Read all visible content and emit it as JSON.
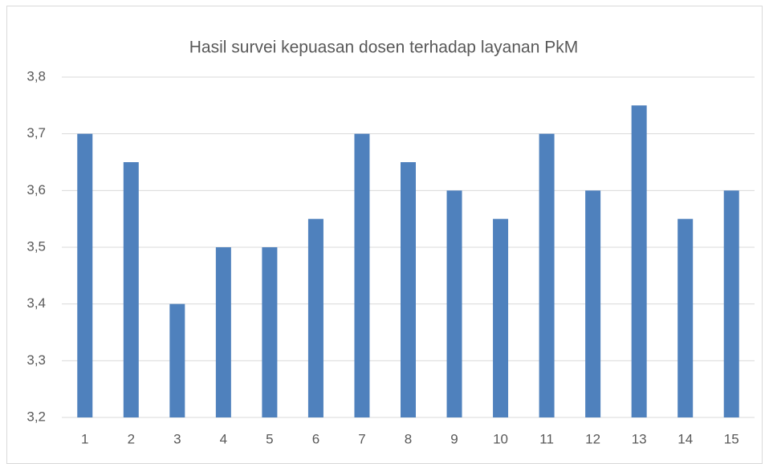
{
  "chart_data": {
    "type": "bar",
    "title": "Hasil survei kepuasan dosen terhadap layanan PkM",
    "categories": [
      "1",
      "2",
      "3",
      "4",
      "5",
      "6",
      "7",
      "8",
      "9",
      "10",
      "11",
      "12",
      "13",
      "14",
      "15"
    ],
    "values": [
      3.7,
      3.65,
      3.4,
      3.5,
      3.5,
      3.55,
      3.7,
      3.65,
      3.6,
      3.55,
      3.7,
      3.6,
      3.75,
      3.55,
      3.6
    ],
    "color": "#4f81bd",
    "ylim": [
      3.2,
      3.8
    ],
    "yticks": [
      {
        "value": 3.2,
        "label": "3,2"
      },
      {
        "value": 3.3,
        "label": "3,3"
      },
      {
        "value": 3.4,
        "label": "3,4"
      },
      {
        "value": 3.5,
        "label": "3,5"
      },
      {
        "value": 3.6,
        "label": "3,6"
      },
      {
        "value": 3.7,
        "label": "3,7"
      },
      {
        "value": 3.8,
        "label": "3,8"
      }
    ],
    "grid": true
  }
}
